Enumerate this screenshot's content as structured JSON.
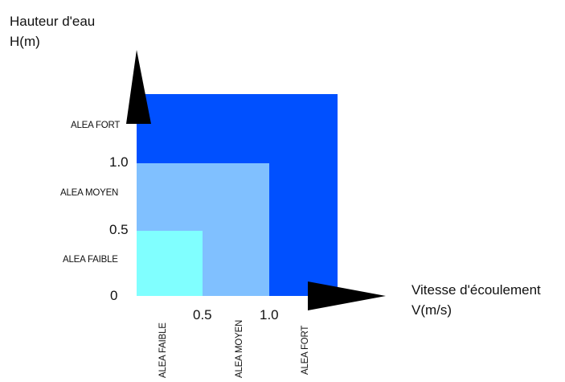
{
  "y_axis": {
    "title": "Hauteur d'eau",
    "unit": "H(m)"
  },
  "x_axis": {
    "title": "Vitesse d'écoulement",
    "unit": "V(m/s)"
  },
  "origin_label": "0",
  "y_ticks": [
    "0.5",
    "1.0"
  ],
  "x_ticks": [
    "0.5",
    "1.0"
  ],
  "zones": [
    {
      "name": "ALEA FAIBLE",
      "color": "#80ffff",
      "max_v": 0.5,
      "max_h": 0.5
    },
    {
      "name": "ALEA MOYEN",
      "color": "#80c0ff",
      "max_v": 1.0,
      "max_h": 1.0
    },
    {
      "name": "ALEA FORT",
      "color": "#0050ff",
      "max_v": 1.5,
      "max_h": 1.5
    }
  ],
  "y_zone_labels": [
    "ALEA FORT",
    "ALEA MOYEN",
    "ALEA FAIBLE"
  ],
  "x_zone_labels": [
    "ALEA FAIBLE",
    "ALEA MOYEN",
    "ALEA FORT"
  ],
  "axis_color": "#000000"
}
